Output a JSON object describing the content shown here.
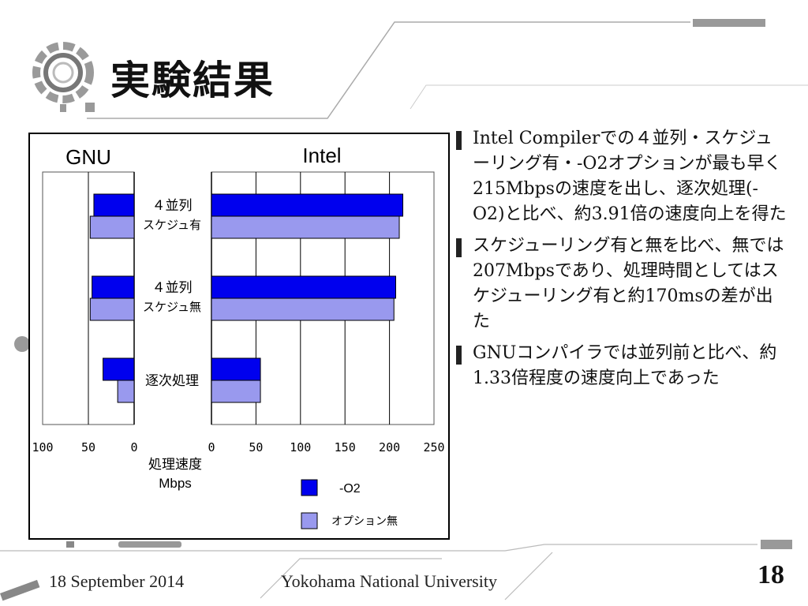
{
  "slide": {
    "title": "実験結果",
    "date": "18 September 2014",
    "university": "Yokohama National University",
    "page_number": "18"
  },
  "bullets": [
    "Intel Compilerでの４並列・スケジューリング有・-O2オプションが最も早く215Mbpsの速度を出し、逐次処理(-O2)と比べ、約3.91倍の速度向上を得た",
    "スケジューリング有と無を比べ、無では207Mbpsであり、処理時間としてはスケジューリング有と約170msの差が出た",
    "GNUコンパイラでは並列前と比べ、約1.33倍程度の速度向上であった"
  ],
  "colors": {
    "series_o2": "#0000ee",
    "series_none": "#9999ee",
    "deco_gray": "#999999"
  },
  "chart_data": {
    "type": "bar",
    "orientation": "horizontal",
    "panels": [
      {
        "name": "GNU",
        "xlim": [
          100,
          0
        ],
        "ticks": [
          "100",
          "50",
          "0"
        ]
      },
      {
        "name": "Intel",
        "xlim": [
          0,
          250
        ],
        "ticks": [
          "0",
          "50",
          "100",
          "150",
          "200",
          "250"
        ]
      }
    ],
    "categories": [
      [
        "４並列",
        "スケジュ有"
      ],
      [
        "４並列",
        "スケジュ無"
      ],
      [
        "逐次処理"
      ]
    ],
    "series": [
      {
        "name": "-O2",
        "gnu": [
          44,
          46,
          34
        ],
        "intel": [
          215,
          207,
          55
        ]
      },
      {
        "name": "オプション無",
        "gnu": [
          48,
          48,
          18
        ],
        "intel": [
          211,
          205,
          55
        ]
      }
    ],
    "xlabel": [
      "処理速度",
      "Mbps"
    ],
    "grid": true,
    "legend_position": "bottom-right"
  }
}
